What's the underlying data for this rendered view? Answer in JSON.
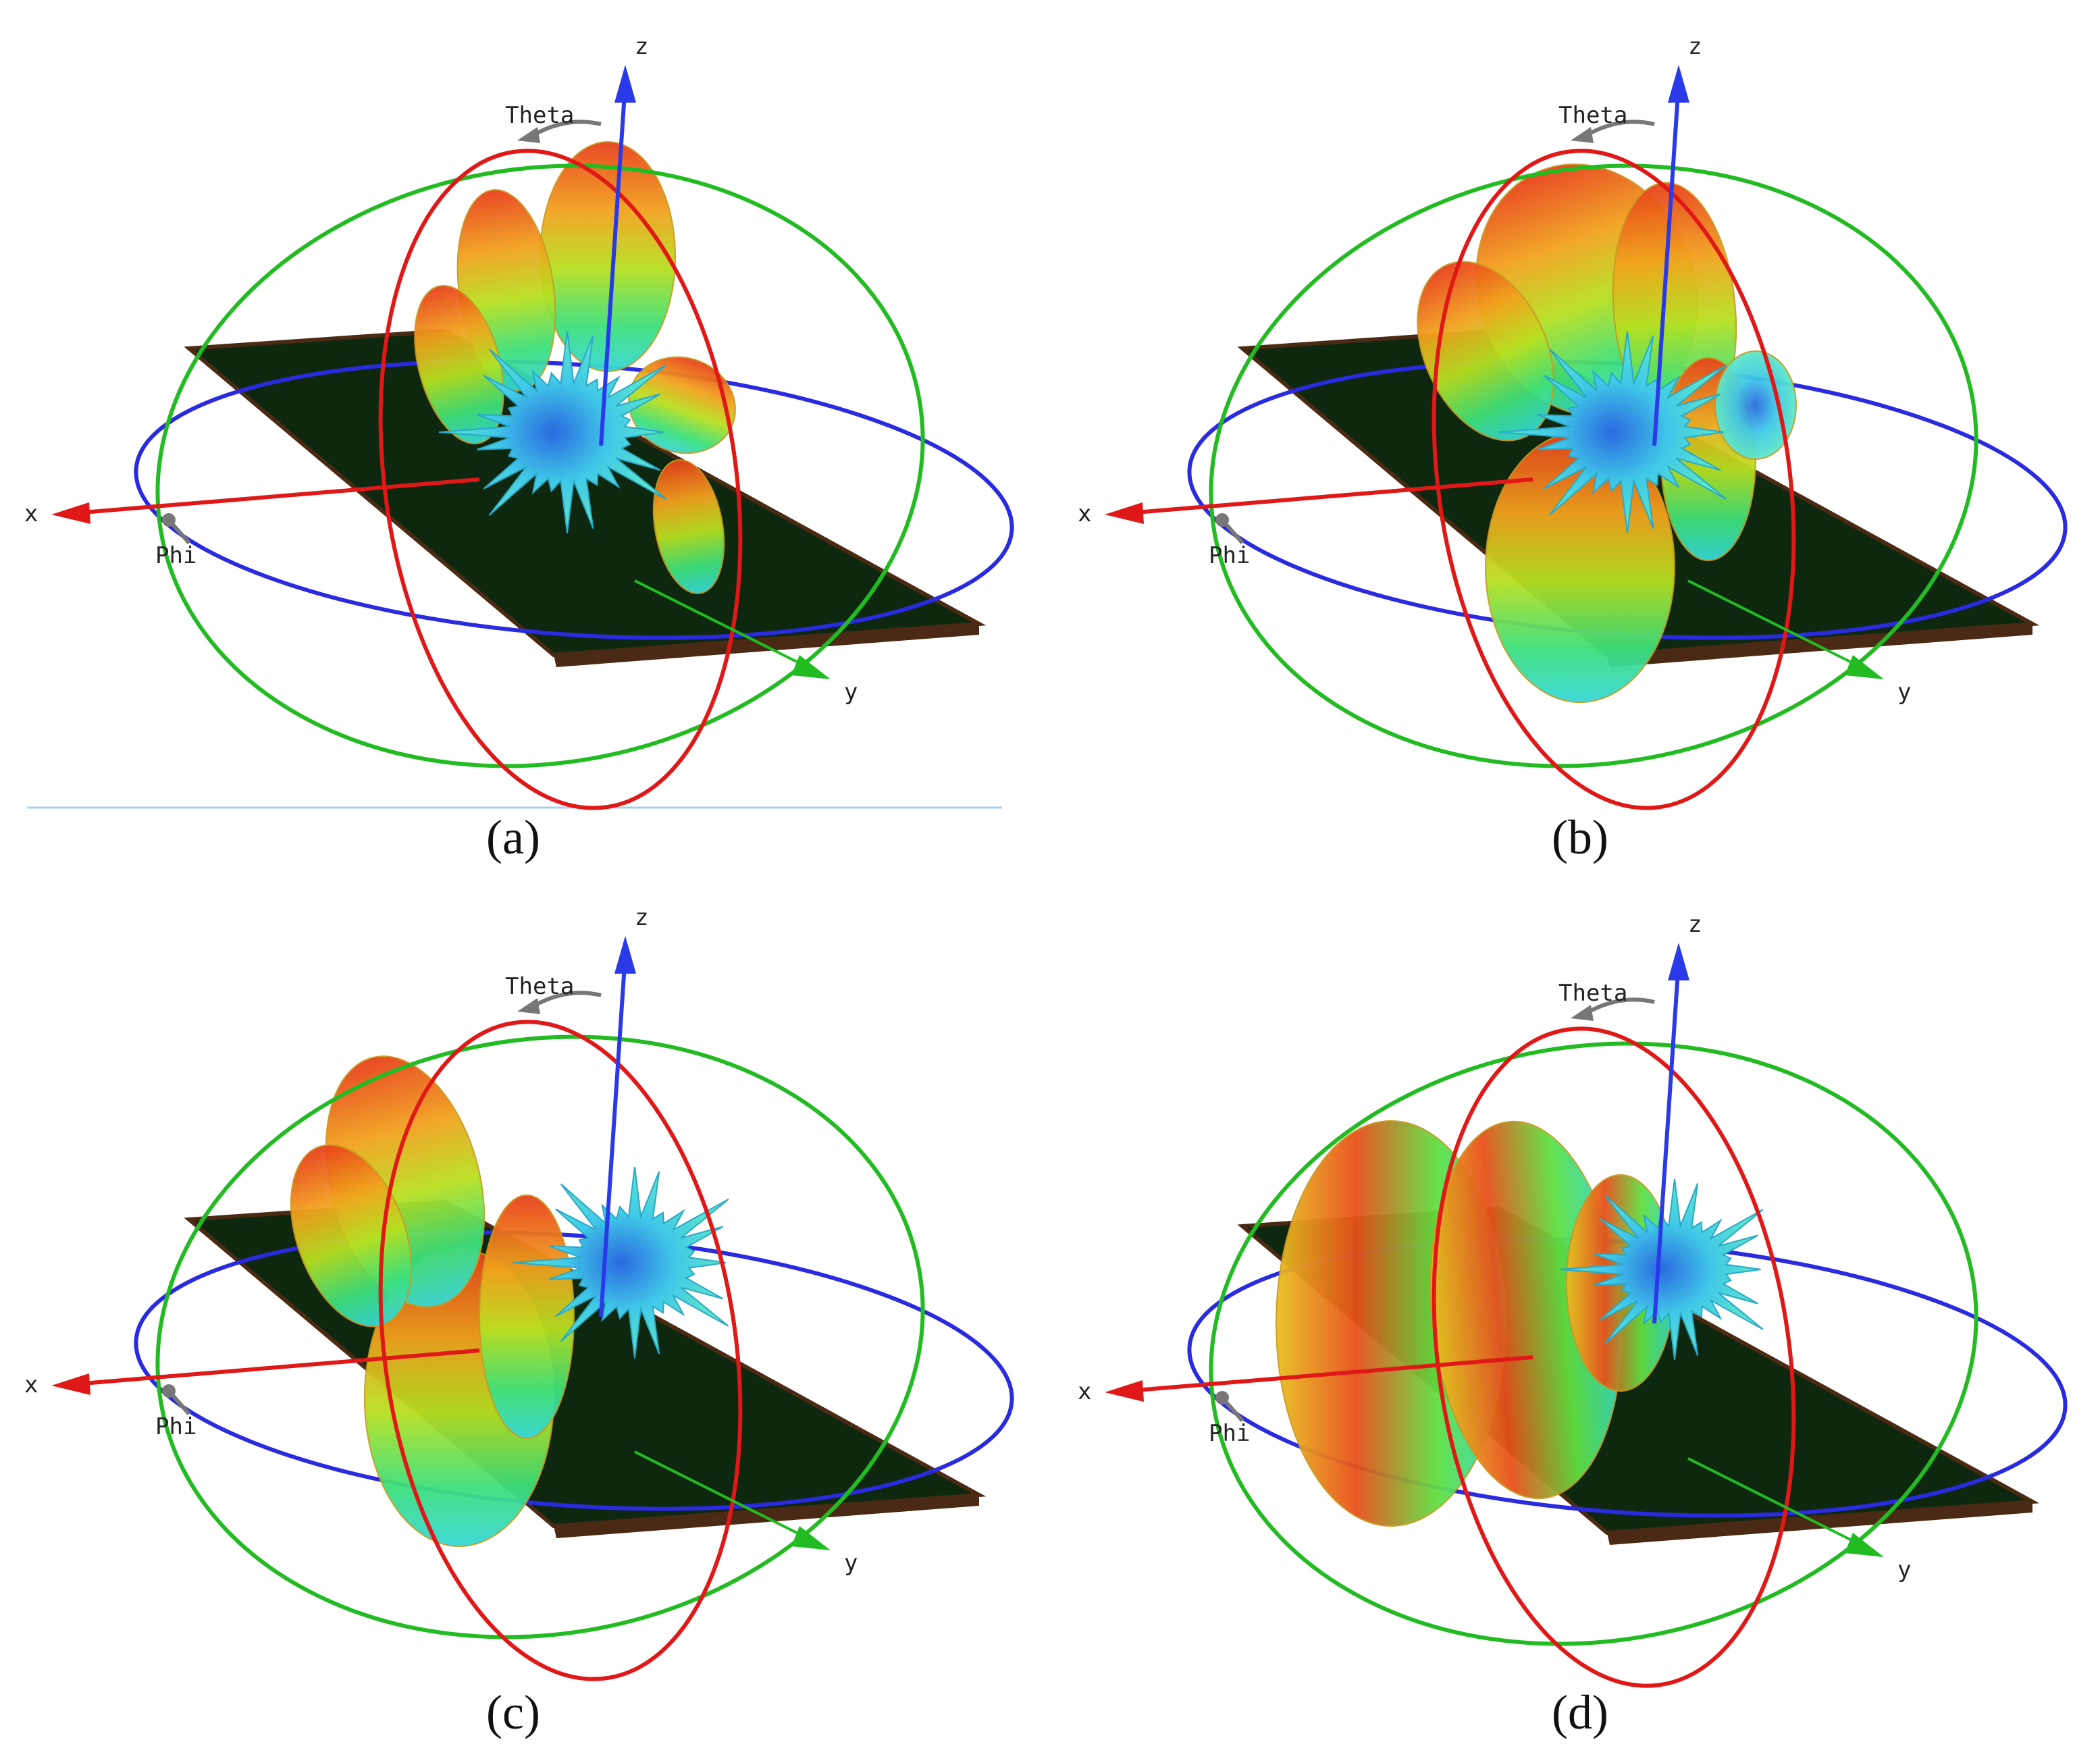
{
  "panels": [
    {
      "caption": "(a)",
      "labels": {
        "z": "z",
        "theta": "Theta",
        "x": "x",
        "phi": "Phi",
        "y": "y"
      }
    },
    {
      "caption": "(b)",
      "labels": {
        "z": "z",
        "theta": "Theta",
        "x": "x",
        "phi": "Phi",
        "y": "y"
      }
    },
    {
      "caption": "(c)",
      "labels": {
        "z": "z",
        "theta": "Theta",
        "x": "x",
        "phi": "Phi",
        "y": "y"
      }
    },
    {
      "caption": "(d)",
      "labels": {
        "z": "z",
        "theta": "Theta",
        "x": "x",
        "phi": "Phi",
        "y": "y"
      }
    }
  ]
}
